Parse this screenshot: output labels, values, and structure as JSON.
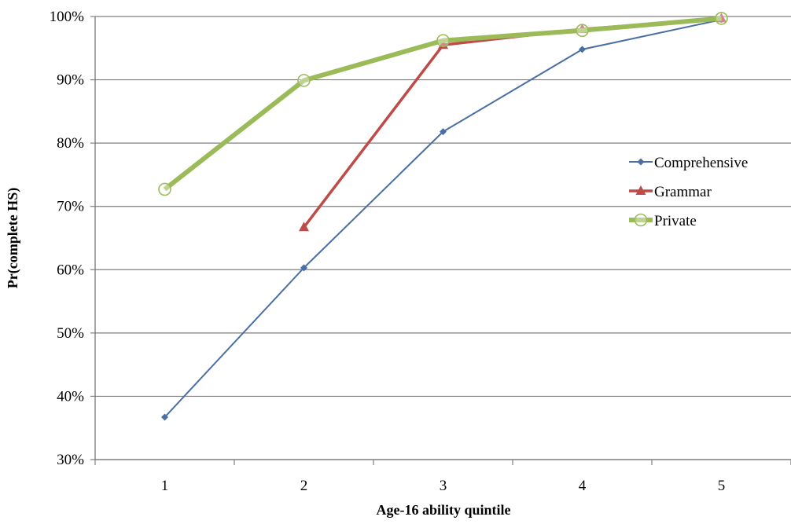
{
  "chart_data": {
    "type": "line",
    "title": "",
    "xlabel": "Age-16 ability quintile",
    "ylabel": "Pr(complete HS)",
    "categories": [
      "1",
      "2",
      "3",
      "4",
      "5"
    ],
    "ylim": [
      0.3,
      1.0
    ],
    "yticks": [
      "30%",
      "40%",
      "50%",
      "60%",
      "70%",
      "80%",
      "90%",
      "100%"
    ],
    "grid": "horizontal",
    "legend_position": "right",
    "series": [
      {
        "name": "Comprehensive",
        "color": "#4a6fa5",
        "marker": "diamond",
        "values": [
          0.367,
          0.603,
          0.818,
          0.948,
          0.995
        ]
      },
      {
        "name": "Grammar",
        "color": "#be4b48",
        "marker": "triangle",
        "values": [
          null,
          0.667,
          0.955,
          0.98,
          0.997
        ]
      },
      {
        "name": "Private",
        "color": "#9bbb59",
        "marker": "circle",
        "values": [
          0.727,
          0.899,
          0.962,
          0.978,
          0.997
        ]
      }
    ]
  }
}
